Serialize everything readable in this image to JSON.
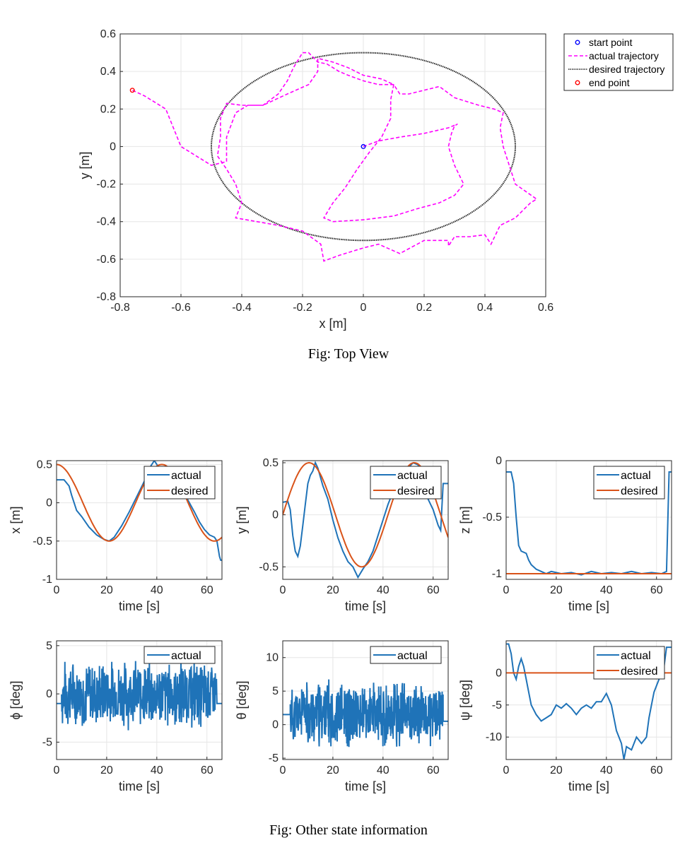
{
  "captions": {
    "top": "Fig: Top View",
    "bottom": "Fig: Other state information"
  },
  "colors": {
    "actual_blue": "#1f73b8",
    "desired_red": "#d95319",
    "traj_magenta": "#ff00ff",
    "desired_black": "#262626",
    "start_blue": "#0000ff",
    "end_red": "#ff0000"
  },
  "chart_data": [
    {
      "id": "top",
      "type": "line",
      "xlabel": "x [m]",
      "ylabel": "y [m]",
      "xlim": [
        -0.8,
        0.6
      ],
      "ylim": [
        -0.8,
        0.6
      ],
      "xticks": [
        -0.8,
        -0.6,
        -0.4,
        -0.2,
        0,
        0.2,
        0.4,
        0.6
      ],
      "yticks": [
        -0.8,
        -0.6,
        -0.4,
        -0.2,
        0,
        0.2,
        0.4,
        0.6
      ],
      "xtick_labels": [
        "-0.8",
        "-0.6",
        "-0.4",
        "-0.2",
        "0",
        "0.2",
        "0.4",
        "0.6"
      ],
      "ytick_labels": [
        "-0.8",
        "-0.6",
        "-0.4",
        "-0.2",
        "0",
        "0.2",
        "0.4",
        "0.6"
      ],
      "grid": true,
      "legend": "outside-right",
      "legend_entries": [
        "start point",
        "actual trajectory",
        "desired trajectory",
        "end point"
      ],
      "desired": {
        "type": "ellipse",
        "cx": 0,
        "cy": 0,
        "rx": 0.5,
        "ry": 0.5
      },
      "start_point": [
        0,
        0
      ],
      "end_point": [
        -0.76,
        0.3
      ],
      "actual": [
        [
          0,
          0
        ],
        [
          0.05,
          0.03
        ],
        [
          0.12,
          0.05
        ],
        [
          0.2,
          0.07
        ],
        [
          0.28,
          0.1
        ],
        [
          0.31,
          0.12
        ],
        [
          0.3,
          0.11
        ],
        [
          0.29,
          0.07
        ],
        [
          0.28,
          0.0
        ],
        [
          0.3,
          -0.1
        ],
        [
          0.33,
          -0.2
        ],
        [
          0.3,
          -0.26
        ],
        [
          0.25,
          -0.3
        ],
        [
          0.18,
          -0.33
        ],
        [
          0.1,
          -0.37
        ],
        [
          0.0,
          -0.39
        ],
        [
          -0.1,
          -0.4
        ],
        [
          -0.13,
          -0.38
        ],
        [
          -0.1,
          -0.3
        ],
        [
          -0.06,
          -0.22
        ],
        [
          -0.02,
          -0.12
        ],
        [
          0.02,
          -0.03
        ],
        [
          0.06,
          0.05
        ],
        [
          0.09,
          0.15
        ],
        [
          0.09,
          0.25
        ],
        [
          0.1,
          0.33
        ],
        [
          0.06,
          0.36
        ],
        [
          0.0,
          0.38
        ],
        [
          -0.05,
          0.42
        ],
        [
          -0.1,
          0.45
        ],
        [
          -0.15,
          0.47
        ],
        [
          -0.15,
          0.4
        ],
        [
          -0.18,
          0.33
        ],
        [
          -0.25,
          0.28
        ],
        [
          -0.33,
          0.22
        ],
        [
          -0.4,
          0.22
        ],
        [
          -0.45,
          0.23
        ],
        [
          -0.47,
          0.15
        ],
        [
          -0.47,
          0.05
        ],
        [
          -0.48,
          -0.05
        ],
        [
          -0.45,
          -0.12
        ],
        [
          -0.42,
          -0.2
        ],
        [
          -0.4,
          -0.3
        ],
        [
          -0.42,
          -0.38
        ],
        [
          -0.35,
          -0.4
        ],
        [
          -0.28,
          -0.42
        ],
        [
          -0.2,
          -0.45
        ],
        [
          -0.14,
          -0.52
        ],
        [
          -0.13,
          -0.61
        ],
        [
          -0.08,
          -0.58
        ],
        [
          0.0,
          -0.54
        ],
        [
          0.05,
          -0.52
        ],
        [
          0.12,
          -0.57
        ],
        [
          0.2,
          -0.5
        ],
        [
          0.28,
          -0.5
        ],
        [
          0.28,
          -0.53
        ],
        [
          0.3,
          -0.48
        ],
        [
          0.35,
          -0.48
        ],
        [
          0.4,
          -0.47
        ],
        [
          0.42,
          -0.52
        ],
        [
          0.45,
          -0.42
        ],
        [
          0.5,
          -0.38
        ],
        [
          0.55,
          -0.3
        ],
        [
          0.57,
          -0.28
        ],
        [
          0.5,
          -0.2
        ],
        [
          0.48,
          -0.1
        ],
        [
          0.46,
          0.0
        ],
        [
          0.45,
          0.1
        ],
        [
          0.46,
          0.18
        ],
        [
          0.43,
          0.2
        ],
        [
          0.38,
          0.22
        ],
        [
          0.3,
          0.26
        ],
        [
          0.25,
          0.32
        ],
        [
          0.2,
          0.3
        ],
        [
          0.15,
          0.28
        ],
        [
          0.12,
          0.28
        ],
        [
          0.1,
          0.33
        ],
        [
          0.05,
          0.33
        ],
        [
          0.0,
          0.35
        ],
        [
          -0.05,
          0.38
        ],
        [
          -0.08,
          0.4
        ],
        [
          -0.12,
          0.44
        ],
        [
          -0.15,
          0.45
        ],
        [
          -0.18,
          0.5
        ],
        [
          -0.2,
          0.5
        ],
        [
          -0.23,
          0.42
        ],
        [
          -0.25,
          0.35
        ],
        [
          -0.28,
          0.28
        ],
        [
          -0.33,
          0.22
        ],
        [
          -0.38,
          0.22
        ],
        [
          -0.42,
          0.18
        ],
        [
          -0.45,
          0.05
        ],
        [
          -0.45,
          -0.08
        ],
        [
          -0.5,
          -0.1
        ],
        [
          -0.6,
          0.0
        ],
        [
          -0.65,
          0.2
        ],
        [
          -0.72,
          0.27
        ],
        [
          -0.76,
          0.3
        ]
      ]
    },
    {
      "id": "x",
      "type": "line",
      "xlabel": "time [s]",
      "ylabel": "x [m]",
      "xlim": [
        0,
        66
      ],
      "ylim": [
        -1,
        0.55
      ],
      "xticks": [
        0,
        20,
        40,
        60
      ],
      "yticks": [
        -1,
        -0.5,
        0,
        0.5
      ],
      "xtick_labels": [
        "0",
        "20",
        "40",
        "60"
      ],
      "ytick_labels": [
        "-1",
        "-0.5",
        "0",
        "0.5"
      ],
      "grid": true,
      "legend": "top-right",
      "legend_entries": [
        "actual",
        "desired"
      ],
      "desired": {
        "kind": "cos",
        "amp": 0.5,
        "period": 42,
        "phase": 0,
        "offset": 0,
        "t0": 0,
        "t1": 66
      },
      "actual": [
        [
          0,
          0.3
        ],
        [
          3,
          0.3
        ],
        [
          5,
          0.22
        ],
        [
          6,
          0.1
        ],
        [
          8,
          -0.1
        ],
        [
          10,
          -0.18
        ],
        [
          13,
          -0.32
        ],
        [
          16,
          -0.42
        ],
        [
          19,
          -0.48
        ],
        [
          21,
          -0.5
        ],
        [
          23,
          -0.45
        ],
        [
          26,
          -0.3
        ],
        [
          29,
          -0.12
        ],
        [
          32,
          0.08
        ],
        [
          35,
          0.28
        ],
        [
          37,
          0.45
        ],
        [
          39,
          0.55
        ],
        [
          41,
          0.45
        ],
        [
          43,
          0.42
        ],
        [
          45,
          0.46
        ],
        [
          47,
          0.38
        ],
        [
          49,
          0.28
        ],
        [
          51,
          0.12
        ],
        [
          53,
          0.0
        ],
        [
          55,
          -0.12
        ],
        [
          57,
          -0.25
        ],
        [
          59,
          -0.35
        ],
        [
          61,
          -0.42
        ],
        [
          63,
          -0.45
        ],
        [
          64,
          -0.5
        ],
        [
          65,
          -0.7
        ],
        [
          65.5,
          -0.75
        ],
        [
          66,
          -0.75
        ]
      ]
    },
    {
      "id": "y",
      "type": "line",
      "xlabel": "time [s]",
      "ylabel": "y [m]",
      "xlim": [
        0,
        66
      ],
      "ylim": [
        -0.62,
        0.52
      ],
      "xticks": [
        0,
        20,
        40,
        60
      ],
      "yticks": [
        -0.5,
        0,
        0.5
      ],
      "xtick_labels": [
        "0",
        "20",
        "40",
        "60"
      ],
      "ytick_labels": [
        "-0.5",
        "0",
        "0.5"
      ],
      "grid": true,
      "legend": "top-right",
      "legend_entries": [
        "actual",
        "desired"
      ],
      "desired": {
        "kind": "sin",
        "amp": 0.5,
        "period": 42,
        "phase": 0,
        "offset": 0,
        "t0": 0,
        "t1": 66
      },
      "actual": [
        [
          0,
          0.12
        ],
        [
          2,
          0.13
        ],
        [
          3,
          0.05
        ],
        [
          4,
          -0.2
        ],
        [
          5,
          -0.35
        ],
        [
          6,
          -0.4
        ],
        [
          7,
          -0.3
        ],
        [
          8,
          -0.1
        ],
        [
          9,
          0.1
        ],
        [
          10,
          0.3
        ],
        [
          11,
          0.38
        ],
        [
          12,
          0.42
        ],
        [
          13,
          0.5
        ],
        [
          14,
          0.45
        ],
        [
          16,
          0.28
        ],
        [
          18,
          0.15
        ],
        [
          20,
          -0.05
        ],
        [
          22,
          -0.22
        ],
        [
          24,
          -0.35
        ],
        [
          26,
          -0.45
        ],
        [
          28,
          -0.5
        ],
        [
          30,
          -0.6
        ],
        [
          32,
          -0.52
        ],
        [
          34,
          -0.45
        ],
        [
          36,
          -0.35
        ],
        [
          38,
          -0.2
        ],
        [
          40,
          -0.05
        ],
        [
          42,
          0.1
        ],
        [
          44,
          0.22
        ],
        [
          46,
          0.3
        ],
        [
          48,
          0.4
        ],
        [
          50,
          0.45
        ],
        [
          52,
          0.5
        ],
        [
          54,
          0.48
        ],
        [
          56,
          0.3
        ],
        [
          58,
          0.15
        ],
        [
          60,
          0.05
        ],
        [
          62,
          -0.1
        ],
        [
          63,
          -0.15
        ],
        [
          64,
          0.3
        ],
        [
          66,
          0.3
        ]
      ]
    },
    {
      "id": "z",
      "type": "line",
      "xlabel": "time [s]",
      "ylabel": "z [m]",
      "xlim": [
        0,
        66
      ],
      "ylim": [
        -1.05,
        0
      ],
      "xticks": [
        0,
        20,
        40,
        60
      ],
      "yticks": [
        -1,
        -0.5,
        0
      ],
      "xtick_labels": [
        "0",
        "20",
        "40",
        "60"
      ],
      "ytick_labels": [
        "-1",
        "-0.5",
        "0"
      ],
      "grid": true,
      "legend": "top-right",
      "legend_entries": [
        "actual",
        "desired"
      ],
      "desired": {
        "kind": "const",
        "value": -1,
        "t0": 0,
        "t1": 66
      },
      "actual": [
        [
          0,
          -0.1
        ],
        [
          2,
          -0.1
        ],
        [
          3,
          -0.2
        ],
        [
          4,
          -0.5
        ],
        [
          5,
          -0.75
        ],
        [
          6,
          -0.8
        ],
        [
          8,
          -0.82
        ],
        [
          9,
          -0.88
        ],
        [
          10,
          -0.92
        ],
        [
          12,
          -0.96
        ],
        [
          14,
          -0.98
        ],
        [
          16,
          -1.0
        ],
        [
          18,
          -0.98
        ],
        [
          22,
          -1.0
        ],
        [
          26,
          -0.99
        ],
        [
          30,
          -1.01
        ],
        [
          34,
          -0.98
        ],
        [
          38,
          -1.0
        ],
        [
          42,
          -0.99
        ],
        [
          46,
          -1.0
        ],
        [
          50,
          -0.98
        ],
        [
          54,
          -1.0
        ],
        [
          58,
          -0.99
        ],
        [
          62,
          -1.0
        ],
        [
          64,
          -0.98
        ],
        [
          65,
          -0.1
        ],
        [
          66,
          -0.1
        ]
      ]
    },
    {
      "id": "phi",
      "type": "line",
      "xlabel": "time [s]",
      "ylabel": "ϕ [deg]",
      "xlim": [
        0,
        66
      ],
      "ylim": [
        -6.8,
        5.5
      ],
      "xticks": [
        0,
        20,
        40,
        60
      ],
      "yticks": [
        -5,
        0,
        5
      ],
      "xtick_labels": [
        "0",
        "20",
        "40",
        "60"
      ],
      "ytick_labels": [
        "-5",
        "0",
        "5"
      ],
      "grid": true,
      "legend": "top-right",
      "legend_entries": [
        "actual"
      ],
      "noise": {
        "seed": 7,
        "t0": 2,
        "t1": 64,
        "pre": -1,
        "post": -1,
        "min": -6.8,
        "max": 5.5,
        "amp": 3.2,
        "mean": 0
      }
    },
    {
      "id": "theta",
      "type": "line",
      "xlabel": "time [s]",
      "ylabel": "θ [deg]",
      "xlim": [
        0,
        66
      ],
      "ylim": [
        -5.2,
        12.5
      ],
      "xticks": [
        0,
        20,
        40,
        60
      ],
      "yticks": [
        -5,
        0,
        5,
        10
      ],
      "xtick_labels": [
        "0",
        "20",
        "40",
        "60"
      ],
      "ytick_labels": [
        "-5",
        "0",
        "5",
        "10"
      ],
      "grid": true,
      "legend": "top-right",
      "legend_entries": [
        "actual"
      ],
      "noise": {
        "seed": 11,
        "t0": 3,
        "t1": 64,
        "pre": 1.5,
        "post": 0.5,
        "min": -5.2,
        "max": 12,
        "amp": 4.5,
        "mean": 1.5
      }
    },
    {
      "id": "psi",
      "type": "line",
      "xlabel": "time [s]",
      "ylabel": "ψ [deg]",
      "xlim": [
        0,
        66
      ],
      "ylim": [
        -13.5,
        5
      ],
      "xticks": [
        0,
        20,
        40,
        60
      ],
      "yticks": [
        -10,
        -5,
        0
      ],
      "xtick_labels": [
        "0",
        "20",
        "40",
        "60"
      ],
      "ytick_labels": [
        "-10",
        "-5",
        "0"
      ],
      "grid": true,
      "legend": "top-right",
      "legend_entries": [
        "actual",
        "desired"
      ],
      "desired": {
        "kind": "const",
        "value": 0,
        "t0": 0,
        "t1": 66
      },
      "actual": [
        [
          0,
          4.5
        ],
        [
          1,
          4.5
        ],
        [
          2,
          3
        ],
        [
          3,
          0
        ],
        [
          4,
          -1
        ],
        [
          5,
          1
        ],
        [
          6,
          2.2
        ],
        [
          7,
          1
        ],
        [
          8,
          -1
        ],
        [
          9,
          -3
        ],
        [
          10,
          -5
        ],
        [
          12,
          -6.5
        ],
        [
          14,
          -7.5
        ],
        [
          16,
          -7
        ],
        [
          18,
          -6.5
        ],
        [
          20,
          -5
        ],
        [
          22,
          -5.5
        ],
        [
          24,
          -4.8
        ],
        [
          26,
          -5.5
        ],
        [
          28,
          -6.5
        ],
        [
          30,
          -5.5
        ],
        [
          32,
          -5
        ],
        [
          34,
          -5.5
        ],
        [
          36,
          -4.5
        ],
        [
          38,
          -4.5
        ],
        [
          40,
          -3.2
        ],
        [
          42,
          -5
        ],
        [
          44,
          -9
        ],
        [
          46,
          -11
        ],
        [
          47,
          -13.5
        ],
        [
          48,
          -11.5
        ],
        [
          50,
          -12
        ],
        [
          52,
          -10
        ],
        [
          54,
          -11
        ],
        [
          56,
          -10
        ],
        [
          57,
          -7
        ],
        [
          58,
          -5
        ],
        [
          59,
          -3
        ],
        [
          60,
          -2
        ],
        [
          62,
          0
        ],
        [
          63,
          1
        ],
        [
          64,
          4
        ],
        [
          66,
          4
        ]
      ]
    }
  ]
}
